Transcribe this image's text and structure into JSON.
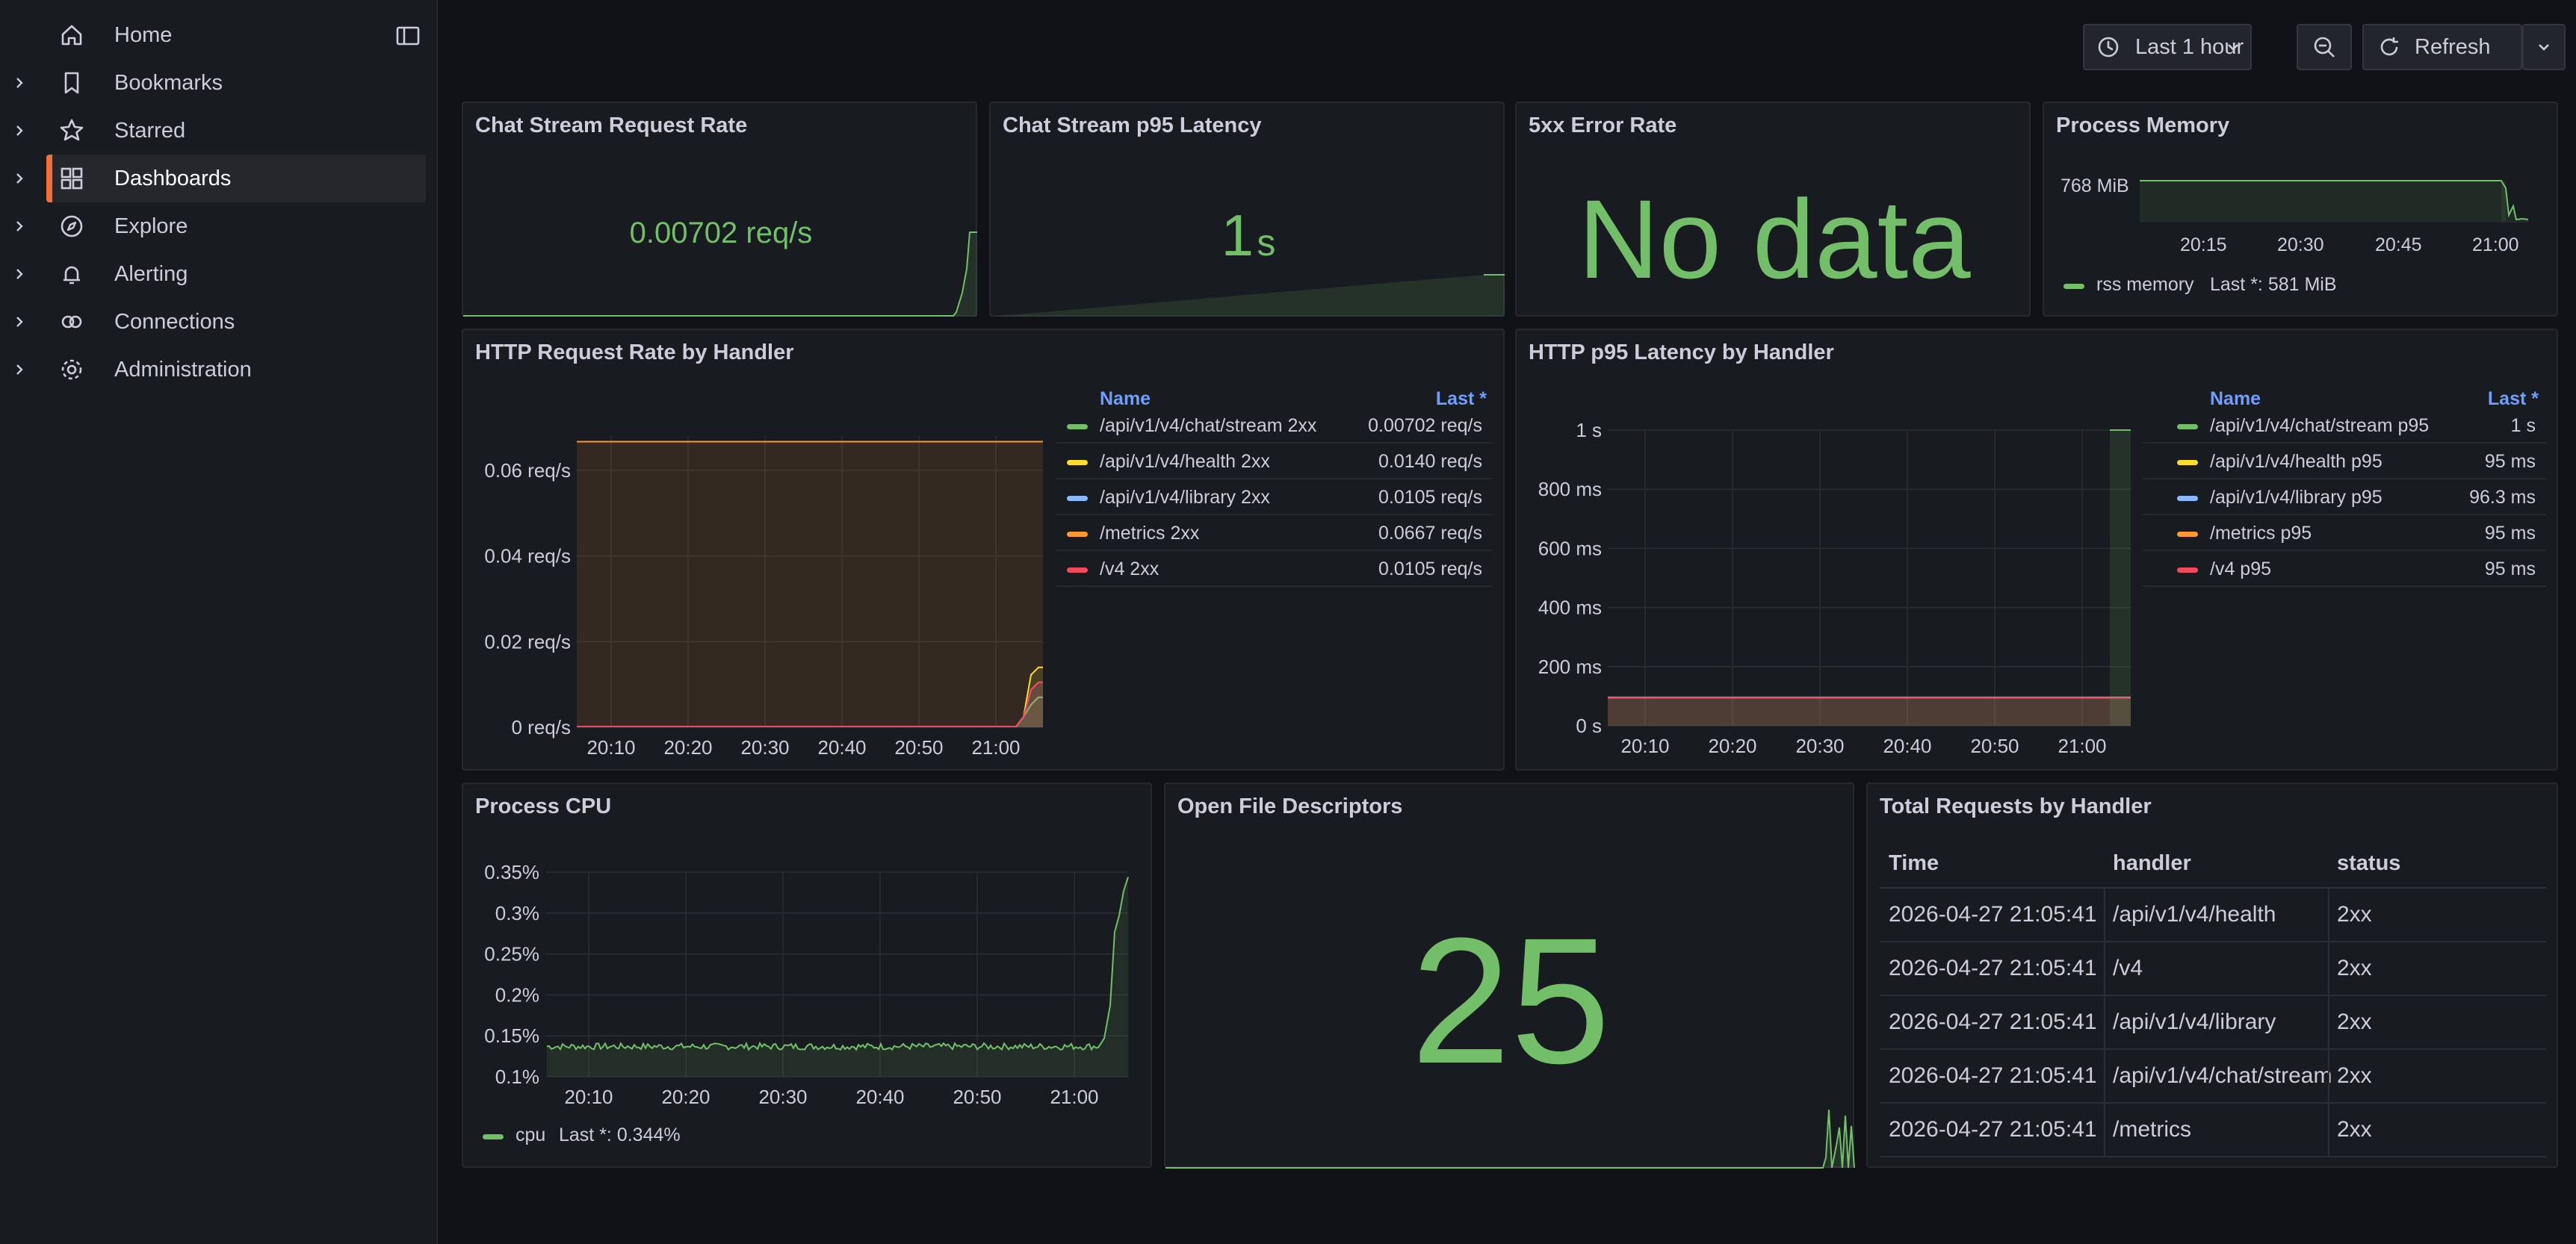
{
  "sidebar": {
    "items": [
      {
        "label": "Home",
        "icon": "home-icon"
      },
      {
        "label": "Bookmarks",
        "icon": "bookmark-icon"
      },
      {
        "label": "Starred",
        "icon": "star-icon"
      },
      {
        "label": "Dashboards",
        "icon": "apps-icon",
        "active": true
      },
      {
        "label": "Explore",
        "icon": "compass-icon"
      },
      {
        "label": "Alerting",
        "icon": "bell-icon"
      },
      {
        "label": "Connections",
        "icon": "link-icon"
      },
      {
        "label": "Administration",
        "icon": "cog-icon"
      }
    ]
  },
  "toolbar": {
    "time_range": "Last 1 hour",
    "refresh_label": "Refresh"
  },
  "colors": {
    "green": "#73bf69",
    "yellow": "#fade2a",
    "blue": "#8ab8ff",
    "orange": "#ff9830",
    "red": "#f2495c",
    "accent": "#f57036"
  },
  "panels": {
    "chat_rate": {
      "title": "Chat Stream Request Rate",
      "value": "0.00702 req/s"
    },
    "chat_latency": {
      "title": "Chat Stream p95 Latency",
      "value": "1",
      "unit": "s"
    },
    "error_rate": {
      "title": "5xx Error Rate",
      "value": "No data"
    },
    "memory": {
      "title": "Process Memory",
      "ylabel": "768 MiB",
      "xticks": [
        "20:15",
        "20:30",
        "20:45",
        "21:00"
      ],
      "legend_name": "rss memory",
      "legend_last": "Last *: 581 MiB"
    },
    "http_rate": {
      "title": "HTTP Request Rate by Handler",
      "legend_header_name": "Name",
      "legend_header_last": "Last *",
      "legend": [
        {
          "name": "/api/v1/v4/chat/stream 2xx",
          "last": "0.00702 req/s",
          "color": "#73bf69"
        },
        {
          "name": "/api/v1/v4/health 2xx",
          "last": "0.0140 req/s",
          "color": "#fade2a"
        },
        {
          "name": "/api/v1/v4/library 2xx",
          "last": "0.0105 req/s",
          "color": "#8ab8ff"
        },
        {
          "name": "/metrics 2xx",
          "last": "0.0667 req/s",
          "color": "#ff9830"
        },
        {
          "name": "/v4 2xx",
          "last": "0.0105 req/s",
          "color": "#f2495c"
        }
      ]
    },
    "http_latency": {
      "title": "HTTP p95 Latency by Handler",
      "legend_header_name": "Name",
      "legend_header_last": "Last *",
      "legend": [
        {
          "name": "/api/v1/v4/chat/stream p95",
          "last": "1 s",
          "color": "#73bf69"
        },
        {
          "name": "/api/v1/v4/health p95",
          "last": "95 ms",
          "color": "#fade2a"
        },
        {
          "name": "/api/v1/v4/library p95",
          "last": "96.3 ms",
          "color": "#8ab8ff"
        },
        {
          "name": "/metrics p95",
          "last": "95 ms",
          "color": "#ff9830"
        },
        {
          "name": "/v4 p95",
          "last": "95 ms",
          "color": "#f2495c"
        }
      ]
    },
    "cpu": {
      "title": "Process CPU",
      "legend_name": "cpu",
      "legend_last": "Last *: 0.344%"
    },
    "fds": {
      "title": "Open File Descriptors",
      "value": "25"
    },
    "total_requests": {
      "title": "Total Requests by Handler",
      "columns": [
        "Time",
        "handler",
        "status"
      ],
      "rows": [
        [
          "2026-04-27 21:05:41",
          "/api/v1/v4/health",
          "2xx"
        ],
        [
          "2026-04-27 21:05:41",
          "/v4",
          "2xx"
        ],
        [
          "2026-04-27 21:05:41",
          "/api/v1/v4/library",
          "2xx"
        ],
        [
          "2026-04-27 21:05:41",
          "/api/v1/v4/chat/stream",
          "2xx"
        ],
        [
          "2026-04-27 21:05:41",
          "/metrics",
          "2xx"
        ]
      ]
    }
  },
  "chart_data": [
    {
      "type": "line",
      "title": "HTTP Request Rate by Handler",
      "x": [
        "20:10",
        "20:20",
        "20:30",
        "20:40",
        "20:50",
        "21:00"
      ],
      "yticks": [
        "0 req/s",
        "0.02 req/s",
        "0.04 req/s",
        "0.06 req/s"
      ],
      "ylim": [
        0,
        0.068
      ],
      "series": [
        {
          "name": "/api/v1/v4/chat/stream 2xx",
          "last": 0.00702
        },
        {
          "name": "/api/v1/v4/health 2xx",
          "last": 0.014
        },
        {
          "name": "/api/v1/v4/library 2xx",
          "last": 0.0105
        },
        {
          "name": "/metrics 2xx",
          "last": 0.0667
        },
        {
          "name": "/v4 2xx",
          "last": 0.0105
        }
      ]
    },
    {
      "type": "line",
      "title": "HTTP p95 Latency by Handler",
      "x": [
        "20:10",
        "20:20",
        "20:30",
        "20:40",
        "20:50",
        "21:00"
      ],
      "yticks": [
        "0 s",
        "200 ms",
        "400 ms",
        "600 ms",
        "800 ms",
        "1 s"
      ],
      "ylim": [
        0,
        1000
      ],
      "series": [
        {
          "name": "/api/v1/v4/chat/stream p95",
          "last": 1000
        },
        {
          "name": "/api/v1/v4/health p95",
          "last": 95
        },
        {
          "name": "/api/v1/v4/library p95",
          "last": 96.3
        },
        {
          "name": "/metrics p95",
          "last": 95
        },
        {
          "name": "/v4 p95",
          "last": 95
        }
      ]
    },
    {
      "type": "line",
      "title": "Process CPU",
      "x": [
        "20:10",
        "20:20",
        "20:30",
        "20:40",
        "20:50",
        "21:00"
      ],
      "yticks": [
        "0.1%",
        "0.15%",
        "0.2%",
        "0.25%",
        "0.3%",
        "0.35%"
      ],
      "ylim": [
        0.1,
        0.35
      ],
      "series": [
        {
          "name": "cpu",
          "baseline": 0.137,
          "last": 0.344
        }
      ]
    }
  ]
}
